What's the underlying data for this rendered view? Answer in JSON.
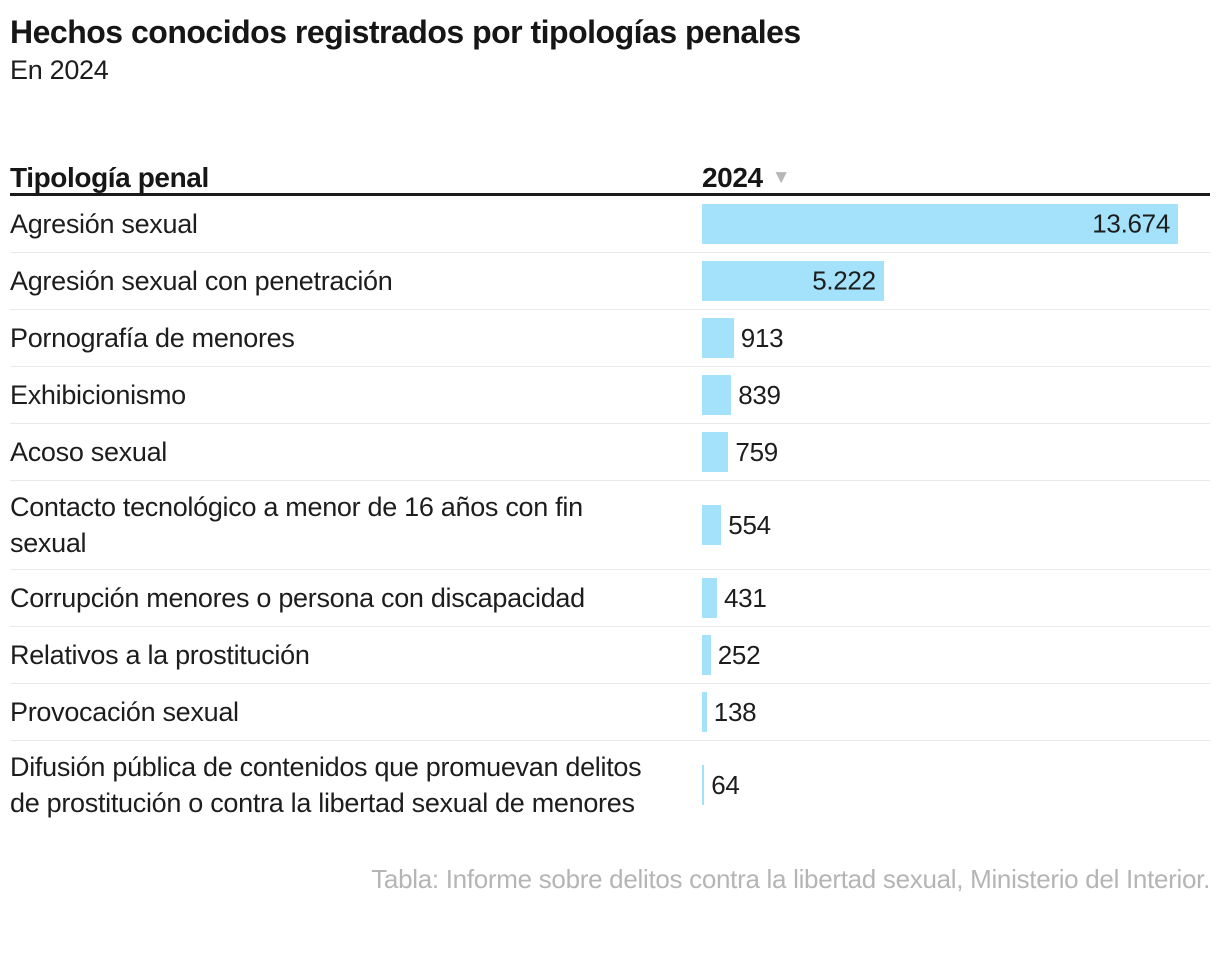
{
  "header": {
    "title": "Hechos conocidos registrados por tipologías penales",
    "subtitle": "En 2024"
  },
  "table": {
    "col1_header": "Tipología penal",
    "col2_header": "2024",
    "sort_icon": "▼"
  },
  "chart_data": {
    "type": "bar",
    "title": "Hechos conocidos registrados por tipologías penales",
    "subtitle": "En 2024",
    "orientation": "horizontal",
    "categories": [
      "Agresión sexual",
      "Agresión sexual con penetración",
      "Pornografía de menores",
      "Exhibicionismo",
      "Acoso sexual",
      "Contacto tecnológico a menor de 16 años con fin sexual",
      "Corrupción menores o persona con discapacidad",
      "Relativos a la prostitución",
      "Provocación sexual",
      "Difusión pública de contenidos que promuevan delitos de prostitución o contra la libertad sexual de menores"
    ],
    "values": [
      13674,
      5222,
      913,
      839,
      759,
      554,
      431,
      252,
      138,
      64
    ],
    "value_labels": [
      "13.674",
      "5.222",
      "913",
      "839",
      "759",
      "554",
      "431",
      "252",
      "138",
      "64"
    ],
    "series_name": "2024",
    "max_value": 13674,
    "xlim": [
      0,
      13674
    ],
    "bar_color": "#a3e2fa",
    "grid": false,
    "legend_position": "none"
  },
  "footer": {
    "text": "Tabla: Informe sobre delitos contra la libertad sexual, Ministerio del Interior."
  }
}
